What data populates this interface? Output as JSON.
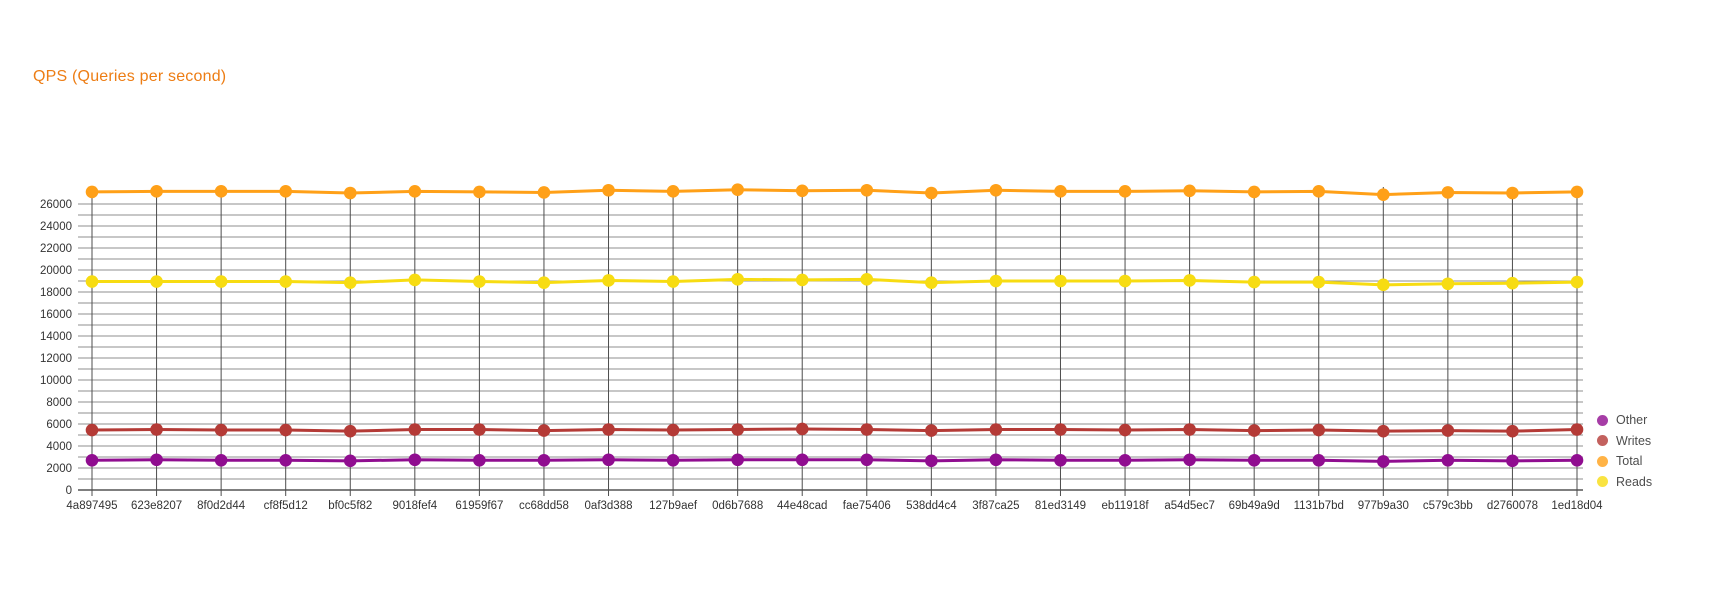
{
  "title": {
    "text": "QPS (Queries per second)",
    "color": "#ED7D14"
  },
  "legend": {
    "position": "bottom-right",
    "entries": [
      {
        "label": "Other",
        "color": "#900D90"
      },
      {
        "label": "Writes",
        "color": "#B43A36"
      },
      {
        "label": "Total",
        "color": "#FFA018"
      },
      {
        "label": "Reads",
        "color": "#F7DC12"
      }
    ]
  },
  "chart_data": {
    "type": "line",
    "title": "QPS (Queries per second)",
    "xlabel": "",
    "ylabel": "",
    "ylim": [
      0,
      27500
    ],
    "yticks": [
      0,
      2000,
      4000,
      6000,
      8000,
      10000,
      12000,
      14000,
      16000,
      18000,
      20000,
      22000,
      24000,
      26000
    ],
    "grid_minor_step": 1000,
    "grid": true,
    "legend_position": "bottom-right",
    "categories": [
      "4a897495",
      "623e8207",
      "8f0d2d44",
      "cf8f5d12",
      "bf0c5f82",
      "9018fef4",
      "61959f67",
      "cc68dd58",
      "0af3d388",
      "127b9aef",
      "0d6b7688",
      "44e48cad",
      "fae75406",
      "538dd4c4",
      "3f87ca25",
      "81ed3149",
      "eb11918f",
      "a54d5ec7",
      "69b49a9d",
      "1131b7bd",
      "977b9a30",
      "c579c3bb",
      "d2760078",
      "1ed18d04"
    ],
    "series": [
      {
        "name": "Total",
        "color": "#FFA018",
        "values": [
          27100,
          27150,
          27150,
          27150,
          27000,
          27150,
          27100,
          27050,
          27250,
          27150,
          27300,
          27200,
          27250,
          27000,
          27250,
          27150,
          27150,
          27200,
          27100,
          27150,
          26850,
          27050,
          27000,
          27100
        ]
      },
      {
        "name": "Reads",
        "color": "#F7DC12",
        "values": [
          18950,
          18950,
          18950,
          18950,
          18850,
          19100,
          18950,
          18850,
          19050,
          18950,
          19150,
          19100,
          19150,
          18850,
          19000,
          19000,
          19000,
          19050,
          18900,
          18900,
          18650,
          18750,
          18800,
          18900
        ]
      },
      {
        "name": "Writes",
        "color": "#B43A36",
        "values": [
          5450,
          5500,
          5450,
          5450,
          5350,
          5500,
          5500,
          5400,
          5500,
          5450,
          5500,
          5550,
          5500,
          5400,
          5500,
          5500,
          5450,
          5500,
          5400,
          5450,
          5350,
          5400,
          5350,
          5500
        ]
      },
      {
        "name": "Other",
        "color": "#900D90",
        "values": [
          2700,
          2750,
          2700,
          2700,
          2650,
          2750,
          2700,
          2700,
          2750,
          2700,
          2750,
          2750,
          2750,
          2650,
          2750,
          2700,
          2700,
          2750,
          2700,
          2700,
          2600,
          2700,
          2650,
          2700
        ]
      }
    ]
  }
}
